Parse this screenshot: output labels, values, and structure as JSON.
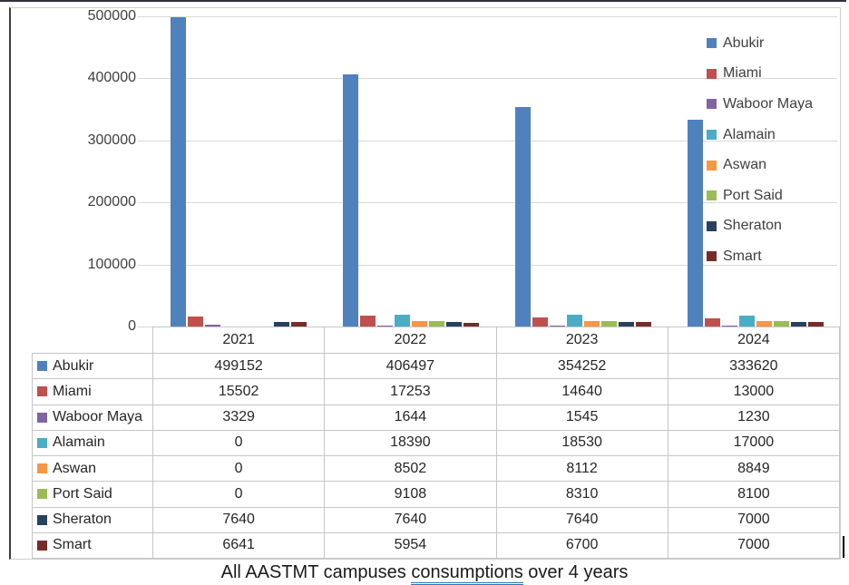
{
  "chart_data": {
    "type": "bar",
    "title": "All AASTMT campuses consumptions over 4 years",
    "categories": [
      "2021",
      "2022",
      "2023",
      "2024"
    ],
    "series": [
      {
        "name": "Abukir",
        "color": "#4F81BD",
        "values": [
          499152,
          406497,
          354252,
          333620
        ]
      },
      {
        "name": "Miami",
        "color": "#C0504D",
        "values": [
          15502,
          17253,
          14640,
          13000
        ]
      },
      {
        "name": "Waboor Maya",
        "color": "#8064A2",
        "values": [
          3329,
          1644,
          1545,
          1230
        ]
      },
      {
        "name": "Alamain",
        "color": "#4BACC6",
        "values": [
          0,
          18390,
          18530,
          17000
        ]
      },
      {
        "name": "Aswan",
        "color": "#F79646",
        "values": [
          0,
          8502,
          8112,
          8849
        ]
      },
      {
        "name": "Port Said",
        "color": "#9BBB59",
        "values": [
          0,
          9108,
          8310,
          8100
        ]
      },
      {
        "name": "Sheraton",
        "color": "#27415F",
        "values": [
          7640,
          7640,
          7640,
          7000
        ]
      },
      {
        "name": "Smart",
        "color": "#772C2A",
        "values": [
          6641,
          5954,
          6700,
          7000
        ]
      }
    ],
    "y_axis": {
      "min": 0,
      "max": 500000,
      "step": 100000,
      "tick_labels": [
        "500000",
        "400000",
        "300000",
        "200000",
        "100000",
        "0"
      ]
    },
    "legend_position": "right",
    "grid": true,
    "data_table_shown": true,
    "gridline_color": "#D9D9D9",
    "table_border_color": "#C6C6C6"
  },
  "caption": {
    "pre": "All AASTMT campuses ",
    "underlined": "consumptions",
    "post": " over 4 years",
    "underline_color": "#2E74B5"
  }
}
